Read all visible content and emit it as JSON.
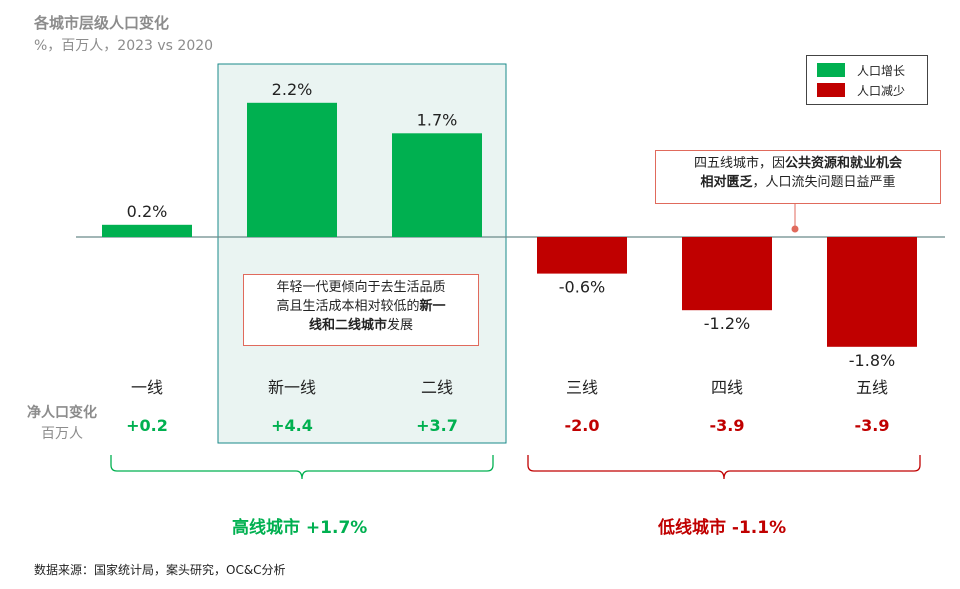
{
  "title": "各城市层级人口变化",
  "subtitle": "%，百万人，2023 vs 2020",
  "legend": {
    "growth_label": "人口增长",
    "decline_label": "人口减少"
  },
  "colors": {
    "growth": "#00b050",
    "decline": "#c00000",
    "highlight_fill": "#eaf4f2",
    "highlight_border": "#1a8a8a",
    "annotation_border": "#e06a5c",
    "muted_text": "#8c8c8c"
  },
  "chart_data": {
    "type": "bar",
    "categories": [
      "一线",
      "新一线",
      "二线",
      "三线",
      "四线",
      "五线"
    ],
    "values": [
      0.2,
      2.2,
      1.7,
      -0.6,
      -1.2,
      -1.8
    ],
    "value_labels": [
      "0.2%",
      "2.2%",
      "1.7%",
      "-0.6%",
      "-1.2%",
      "-1.8%"
    ],
    "net_change_label": "净人口变化",
    "net_change_unit": "百万人",
    "net_change": [
      "+0.2",
      "+4.4",
      "+3.7",
      "-2.0",
      "-3.9",
      "-3.9"
    ],
    "highlighted_categories": [
      "新一线",
      "二线"
    ],
    "groups": [
      {
        "label": "高线城市 +1.7%",
        "categories": [
          "一线",
          "新一线",
          "二线"
        ],
        "color": "#00b050"
      },
      {
        "label": "低线城市 -1.1%",
        "categories": [
          "三线",
          "四线",
          "五线"
        ],
        "color": "#c00000"
      }
    ],
    "legend_position": "top-right"
  },
  "annotations": {
    "left": {
      "line1": "年轻一代更倾向于去生活品质",
      "line2_pre": "高且生活成本相对较低的",
      "line2_bold": "新一",
      "line3_bold": "线和二线城市",
      "line3_post": "发展"
    },
    "right": {
      "line1_pre": "四五线城市，因",
      "line1_bold": "公共资源和就业机会",
      "line2_bold": "相对匮乏",
      "line2_post": "，人口流失问题日益严重"
    }
  },
  "source": "数据来源：国家统计局，案头研究，OC&C分析"
}
